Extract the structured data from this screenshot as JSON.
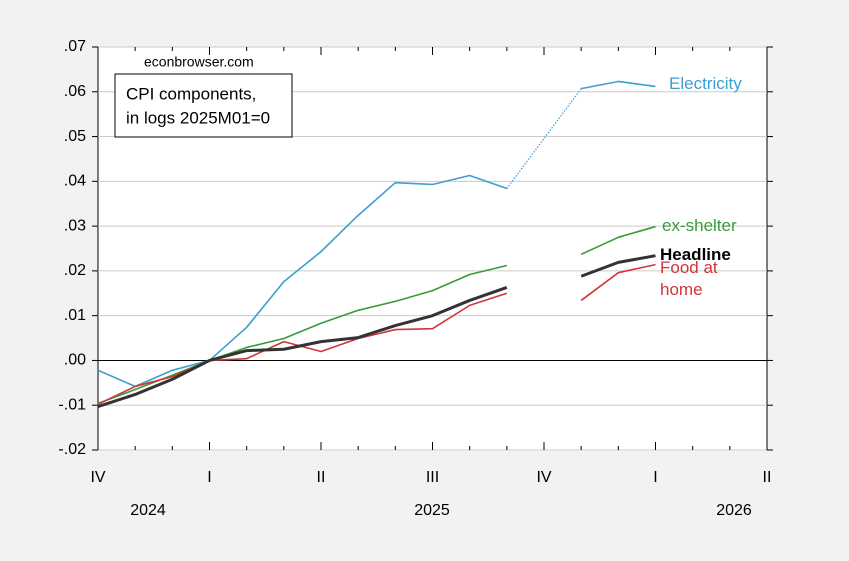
{
  "chart_data": {
    "type": "line",
    "source": "econbrowser.com",
    "annotation": [
      "CPI components,",
      "in logs 2025M01=0"
    ],
    "categories": [
      "IV",
      null,
      null,
      "I",
      null,
      null,
      "II",
      null,
      null,
      "III",
      null,
      null,
      "IV",
      null,
      null,
      "I",
      null,
      null,
      "II"
    ],
    "years": [
      "2024",
      "2025",
      "2026"
    ],
    "ylim": [
      -0.02,
      0.07
    ],
    "yticks": [
      {
        "value": -0.02,
        "label": "-.02"
      },
      {
        "value": -0.01,
        "label": "-.01"
      },
      {
        "value": 0,
        "label": ".00"
      },
      {
        "value": 0.01,
        "label": ".01"
      },
      {
        "value": 0.02,
        "label": ".02"
      },
      {
        "value": 0.03,
        "label": ".03"
      },
      {
        "value": 0.04,
        "label": ".04"
      },
      {
        "value": 0.05,
        "label": ".05"
      },
      {
        "value": 0.06,
        "label": ".06"
      },
      {
        "value": 0.07,
        "label": ".07"
      }
    ],
    "grid": true,
    "series": [
      {
        "name": "Electricity",
        "color": "#3d9fcf",
        "bridge_gaps": "dotted",
        "values": [
          -0.0022,
          -0.0058,
          -0.0022,
          0,
          0.0074,
          0.0176,
          0.0243,
          0.0324,
          0.0397,
          0.0393,
          0.0413,
          0.0384,
          null,
          0.0607,
          0.0623,
          0.0612,
          null,
          null,
          null
        ]
      },
      {
        "name": "ex-shelter",
        "color": "#3a9a3a",
        "values": [
          -0.0096,
          -0.0065,
          -0.0033,
          0,
          0.0029,
          0.0049,
          0.0083,
          0.0112,
          0.0132,
          0.0156,
          0.0192,
          0.0212,
          null,
          0.0237,
          0.0275,
          0.0299,
          null,
          null,
          null
        ]
      },
      {
        "name": "Food at home",
        "color": "#d0353a",
        "values": [
          -0.0098,
          -0.0058,
          -0.0036,
          0,
          0.0004,
          0.0042,
          0.002,
          0.0049,
          0.0069,
          0.0071,
          0.0123,
          0.015,
          null,
          0.0134,
          0.0196,
          0.0214,
          null,
          null,
          null
        ]
      },
      {
        "name": "Headline",
        "color": "#333333",
        "values": [
          -0.0103,
          -0.0076,
          -0.0042,
          0,
          0.0022,
          0.0025,
          0.0042,
          0.0051,
          0.0078,
          0.01,
          0.0134,
          0.0163,
          null,
          0.0188,
          0.0219,
          0.0234,
          null,
          null,
          null
        ]
      }
    ]
  }
}
